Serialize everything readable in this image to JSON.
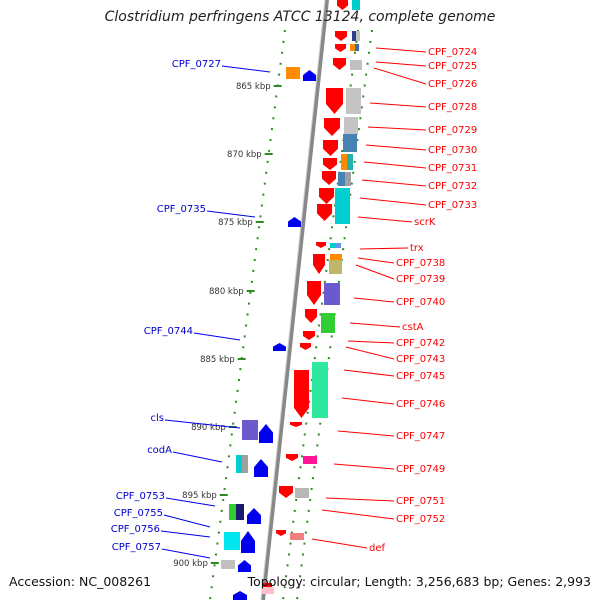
{
  "title": "Clostridium perfringens ATCC 13124, complete genome",
  "footer": {
    "accession": "Accession: NC_008261",
    "summary": "Topology: circular; Length: 3,256,683 bp; Genes: 2,993"
  },
  "colors": {
    "reverse_strand": "#ff0000",
    "forward_strand": "#0000ee",
    "backbone": "#888888",
    "ruler": "#2e8b22"
  },
  "ticks": [
    "865 kbp",
    "870 kbp",
    "875 kbp",
    "880 kbp",
    "885 kbp",
    "890 kbp",
    "895 kbp",
    "900 kbp"
  ],
  "genes_left": [
    "CPF_0727",
    "CPF_0735",
    "CPF_0744",
    "cls",
    "codA",
    "CPF_0753",
    "CPF_0755",
    "CPF_0756",
    "CPF_0757"
  ],
  "genes_right": [
    "CPF_0724",
    "CPF_0725",
    "CPF_0726",
    "CPF_0728",
    "CPF_0729",
    "CPF_0730",
    "CPF_0731",
    "CPF_0732",
    "CPF_0733",
    "scrK",
    "trx",
    "CPF_0738",
    "CPF_0739",
    "CPF_0740",
    "cstA",
    "CPF_0742",
    "CPF_0743",
    "CPF_0745",
    "CPF_0746",
    "CPF_0747",
    "CPF_0749",
    "CPF_0751",
    "CPF_0752",
    "def"
  ]
}
